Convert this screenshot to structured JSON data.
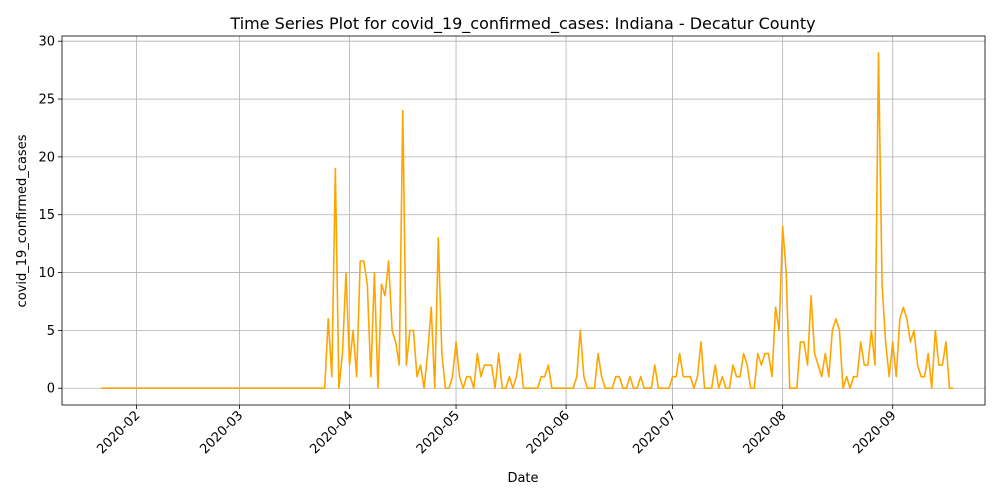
{
  "chart_data": {
    "type": "line",
    "title": "Time Series Plot for covid_19_confirmed_cases: Indiana - Decatur County",
    "xlabel": "Date",
    "ylabel": "covid_19_confirmed_cases",
    "x_start": "2020-01-22",
    "x_end": "2020-09-16",
    "xlim": [
      "2020-01-11",
      "2020-09-27"
    ],
    "ylim": [
      -1.45,
      30.45
    ],
    "x_ticks": [
      "2020-02",
      "2020-03",
      "2020-04",
      "2020-05",
      "2020-06",
      "2020-07",
      "2020-08",
      "2020-09"
    ],
    "y_ticks": [
      0,
      5,
      10,
      15,
      20,
      25,
      30
    ],
    "grid": true,
    "line_color": "#ffa500",
    "series": [
      {
        "values": [
          0,
          0,
          0,
          0,
          0,
          0,
          0,
          0,
          0,
          0,
          0,
          0,
          0,
          0,
          0,
          0,
          0,
          0,
          0,
          0,
          0,
          0,
          0,
          0,
          0,
          0,
          0,
          0,
          0,
          0,
          0,
          0,
          0,
          0,
          0,
          0,
          0,
          0,
          0,
          0,
          0,
          0,
          0,
          0,
          0,
          0,
          0,
          0,
          0,
          0,
          0,
          0,
          0,
          0,
          0,
          0,
          0,
          0,
          0,
          0,
          0,
          0,
          0,
          0,
          6,
          1,
          19,
          0,
          3,
          10,
          2,
          5,
          1,
          11,
          11,
          9,
          1,
          10,
          0,
          9,
          8,
          11,
          5,
          4,
          2,
          24,
          2,
          5,
          5,
          1,
          2,
          0,
          3,
          7,
          0,
          13,
          3,
          0,
          0,
          1,
          4,
          1,
          0,
          1,
          1,
          0,
          3,
          1,
          2,
          2,
          2,
          0,
          3,
          0,
          0,
          1,
          0,
          1,
          3,
          0,
          0,
          0,
          0,
          0,
          1,
          1,
          2,
          0,
          0,
          0,
          0,
          0,
          0,
          0,
          1,
          5,
          1,
          0,
          0,
          0,
          3,
          1,
          0,
          0,
          0,
          1,
          1,
          0,
          0,
          1,
          0,
          0,
          1,
          0,
          0,
          0,
          2,
          0,
          0,
          0,
          0,
          1,
          1,
          3,
          1,
          1,
          1,
          0,
          1,
          4,
          0,
          0,
          0,
          2,
          0,
          1,
          0,
          0,
          2,
          1,
          1,
          3,
          2,
          0,
          0,
          3,
          2,
          3,
          3,
          1,
          7,
          5,
          14,
          10,
          0,
          0,
          0,
          4,
          4,
          2,
          8,
          3,
          2,
          1,
          3,
          1,
          5,
          6,
          5,
          0,
          1,
          0,
          1,
          1,
          4,
          2,
          2,
          5,
          2,
          29,
          9,
          4,
          1,
          4,
          1,
          6,
          7,
          6,
          4,
          5,
          2,
          1,
          1,
          3,
          0,
          5,
          2,
          2,
          4,
          0,
          0
        ]
      }
    ]
  }
}
